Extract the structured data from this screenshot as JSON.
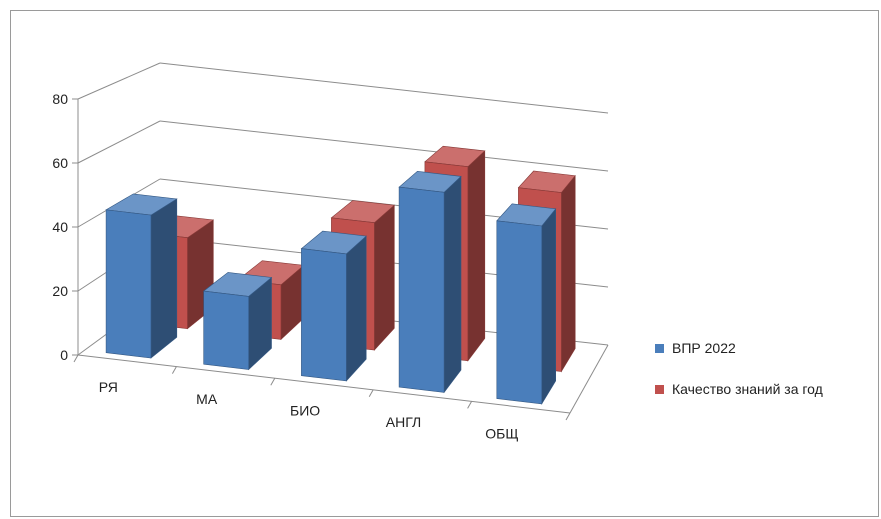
{
  "chart_data": {
    "type": "bar",
    "title": "",
    "xlabel": "",
    "ylabel": "",
    "categories": [
      "РЯ",
      "МА",
      "БИО",
      "АНГЛ",
      "ОБЩ"
    ],
    "series": [
      {
        "name": "ВПР 2022",
        "color": "#4a7ebb",
        "values": [
          45,
          23,
          40,
          63,
          56
        ]
      },
      {
        "name": "Качество знаний за год",
        "color": "#c0504d",
        "values": [
          30,
          18,
          42,
          64,
          59
        ]
      }
    ],
    "yticks": [
      0,
      20,
      40,
      60,
      80
    ],
    "ylim": [
      0,
      80
    ],
    "grid": true,
    "legend": "right",
    "projection": "3d-perspective"
  }
}
